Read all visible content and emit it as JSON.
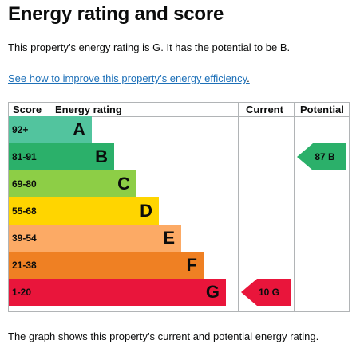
{
  "page": {
    "title": "Energy rating and score",
    "summary": "This property’s energy rating is G. It has the potential to be B.",
    "improve_link": "See how to improve this property’s energy efficiency",
    "improve_link_suffix": ".",
    "footer": "The graph shows this property’s current and potential energy rating."
  },
  "chart_data": {
    "type": "table",
    "columns": [
      "Score",
      "Energy rating",
      "Current",
      "Potential"
    ],
    "bands": [
      {
        "score": "92+",
        "letter": "A",
        "color": "#52c49e"
      },
      {
        "score": "81-91",
        "letter": "B",
        "color": "#2bb06a"
      },
      {
        "score": "69-80",
        "letter": "C",
        "color": "#8dce46"
      },
      {
        "score": "55-68",
        "letter": "D",
        "color": "#ffd500"
      },
      {
        "score": "39-54",
        "letter": "E",
        "color": "#fcaa65"
      },
      {
        "score": "21-38",
        "letter": "F",
        "color": "#ef8023"
      },
      {
        "score": "1-20",
        "letter": "G",
        "color": "#e9153b"
      }
    ],
    "current": {
      "label": "10 G",
      "value": 10,
      "band": "G",
      "color": "#e9153b"
    },
    "potential": {
      "label": "87 B",
      "value": 87,
      "band": "B",
      "color": "#2bb06a"
    }
  }
}
